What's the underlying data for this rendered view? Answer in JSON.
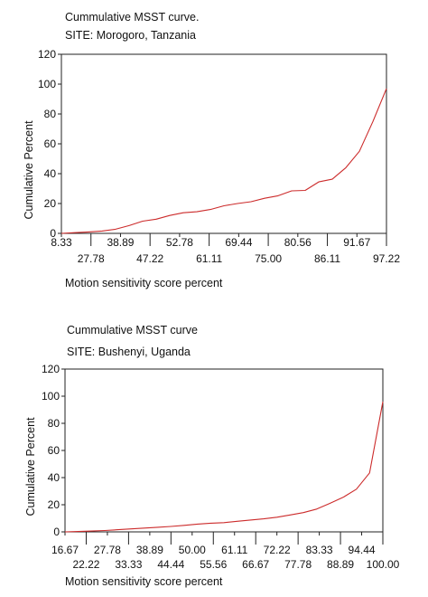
{
  "chart_data": [
    {
      "type": "line",
      "title": "Cummulative MSST curve.",
      "subtitle": "SITE:   Morogoro, Tanzania",
      "xlabel": "Motion sensitivity score percent",
      "ylabel": "Cumulative Percent",
      "ylim": [
        0,
        120
      ],
      "yticks": [
        "0",
        "20",
        "40",
        "60",
        "80",
        "100",
        "120"
      ],
      "xticks_row1": [
        "8.33",
        "38.89",
        "52.78",
        "69.44",
        "80.56",
        "91.67"
      ],
      "xticks_row2": [
        "27.78",
        "47.22",
        "61.11",
        "75.00",
        "86.11",
        "97.22"
      ],
      "series_color": "#cc2b2b",
      "values": [
        0,
        0.5,
        1.0,
        1.6,
        2.8,
        5.2,
        8.2,
        9.5,
        12.0,
        13.8,
        14.5,
        16.0,
        18.5,
        20.0,
        21.2,
        23.5,
        25.2,
        28.5,
        28.8,
        34.5,
        36.3,
        44.0,
        55.0,
        75.0,
        97.0
      ]
    },
    {
      "type": "line",
      "title": "Cummulative MSST curve",
      "subtitle": "SITE:   Bushenyi, Uganda",
      "xlabel": "Motion sensitivity score percent",
      "ylabel": "Cumulative Percent",
      "ylim": [
        0,
        120
      ],
      "yticks": [
        "0",
        "20",
        "40",
        "60",
        "80",
        "100",
        "120"
      ],
      "xticks_row1": [
        "16.67",
        "27.78",
        "38.89",
        "50.00",
        "61.11",
        "72.22",
        "83.33",
        "94.44"
      ],
      "xticks_row2": [
        "22.22",
        "33.33",
        "44.44",
        "55.56",
        "66.67",
        "77.78",
        "88.89",
        "100.00"
      ],
      "series_color": "#cc2b2b",
      "values": [
        0,
        0.3,
        0.6,
        1.0,
        1.6,
        2.2,
        2.8,
        3.4,
        4.0,
        4.8,
        5.7,
        6.4,
        6.8,
        7.8,
        8.7,
        9.6,
        10.8,
        12.5,
        14.2,
        16.8,
        21.0,
        25.5,
        31.5,
        43.5,
        96.0
      ]
    }
  ]
}
